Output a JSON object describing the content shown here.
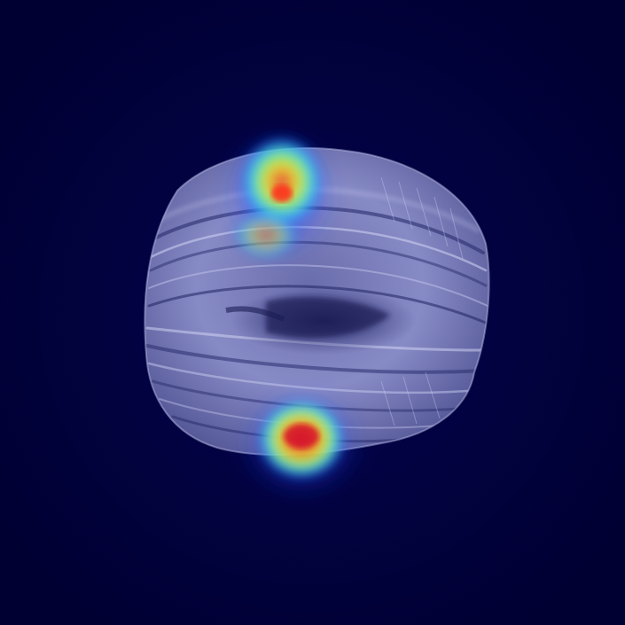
{
  "image": {
    "background_color": "#00003f",
    "specimen_tint": "#8a8fc8",
    "specimen_shadow": "#2a2d6e",
    "colormap": "jet",
    "heatmap_colors": {
      "low": "#1f3fff",
      "mid_low": "#29c8ff",
      "mid": "#7dff5a",
      "mid_high": "#ffe81a",
      "high": "#ff2a1a"
    },
    "hotspots": [
      {
        "name": "top-band-hotspot",
        "intensity": 0.95
      },
      {
        "name": "bottom-hotspot",
        "intensity": 0.9
      }
    ]
  }
}
